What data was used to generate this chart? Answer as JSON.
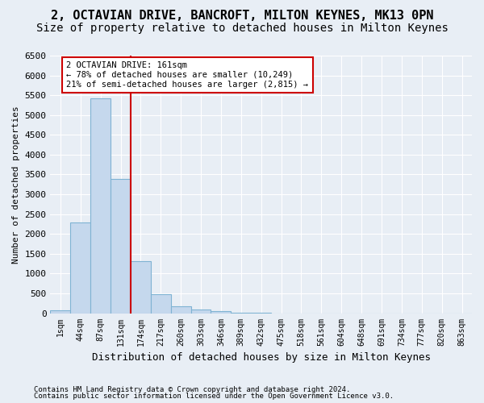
{
  "title": "2, OCTAVIAN DRIVE, BANCROFT, MILTON KEYNES, MK13 0PN",
  "subtitle": "Size of property relative to detached houses in Milton Keynes",
  "xlabel": "Distribution of detached houses by size in Milton Keynes",
  "ylabel": "Number of detached properties",
  "footer1": "Contains HM Land Registry data © Crown copyright and database right 2024.",
  "footer2": "Contains public sector information licensed under the Open Government Licence v3.0.",
  "bar_labels": [
    "1sqm",
    "44sqm",
    "87sqm",
    "131sqm",
    "174sqm",
    "217sqm",
    "260sqm",
    "303sqm",
    "346sqm",
    "389sqm",
    "432sqm",
    "475sqm",
    "518sqm",
    "561sqm",
    "604sqm",
    "648sqm",
    "691sqm",
    "734sqm",
    "777sqm",
    "820sqm",
    "863sqm"
  ],
  "bar_values": [
    70,
    2280,
    5430,
    3380,
    1310,
    480,
    165,
    90,
    60,
    20,
    5,
    0,
    0,
    0,
    0,
    0,
    0,
    0,
    0,
    0,
    0
  ],
  "bar_color": "#c5d8ed",
  "bar_edgecolor": "#7fb3d3",
  "property_line_x": 3.5,
  "vline_color": "#cc0000",
  "annotation_text": "2 OCTAVIAN DRIVE: 161sqm\n← 78% of detached houses are smaller (10,249)\n21% of semi-detached houses are larger (2,815) →",
  "annotation_box_edgecolor": "#cc0000",
  "ylim": [
    0,
    6500
  ],
  "yticks": [
    0,
    500,
    1000,
    1500,
    2000,
    2500,
    3000,
    3500,
    4000,
    4500,
    5000,
    5500,
    6000,
    6500
  ],
  "bg_color": "#e8eef5",
  "plot_bg_color": "#e8eef5",
  "grid_color": "white",
  "title_fontsize": 11,
  "subtitle_fontsize": 10
}
